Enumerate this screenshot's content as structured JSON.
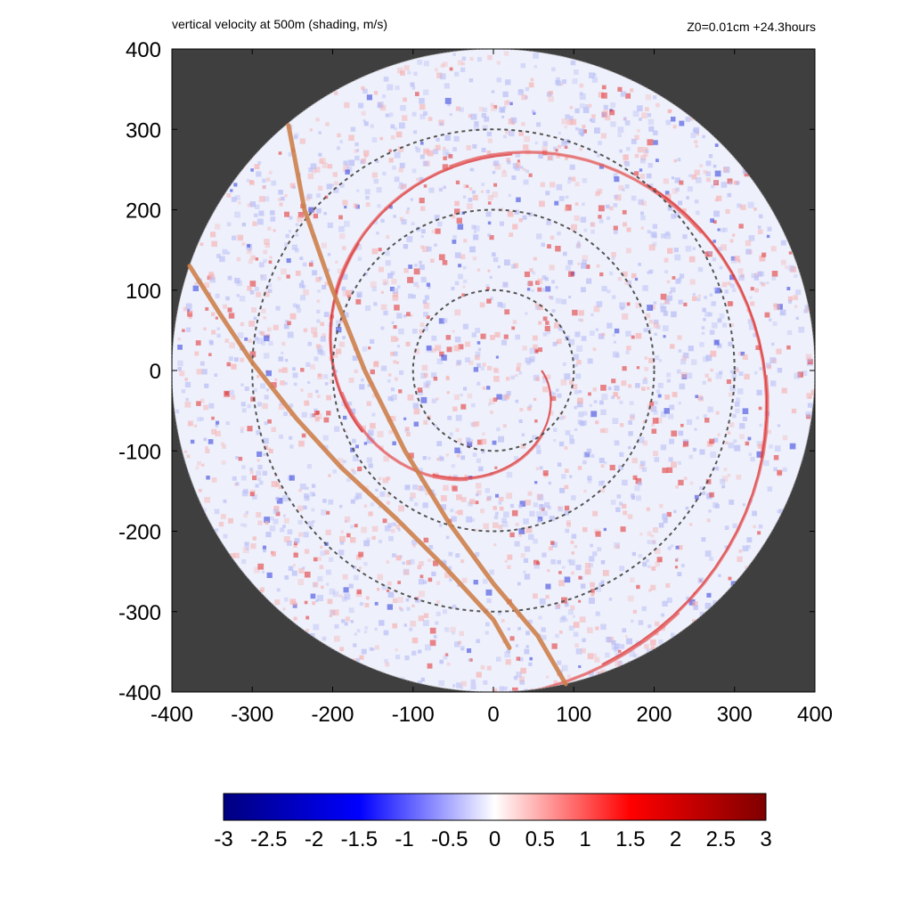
{
  "chart_data": {
    "type": "heatmap",
    "title": "vertical velocity at 500m (shading, m/s)",
    "subtitle": "Z0=0.01cm  +24.3hours",
    "xlabel": "",
    "ylabel": "",
    "xlim": [
      -400,
      400
    ],
    "ylim": [
      -400,
      400
    ],
    "x_ticks": [
      "-400",
      "-300",
      "-200",
      "-100",
      "0",
      "100",
      "200",
      "300",
      "400"
    ],
    "y_ticks": [
      "400",
      "300",
      "200",
      "100",
      "0",
      "-100",
      "-200",
      "-300",
      "-400"
    ],
    "x_tick_values": [
      -400,
      -300,
      -200,
      -100,
      0,
      100,
      200,
      300,
      400
    ],
    "y_tick_values": [
      400,
      300,
      200,
      100,
      0,
      -100,
      -200,
      -300,
      -400
    ],
    "domain_radius": 400,
    "reference_circle_radii": [
      100,
      200,
      300
    ],
    "tracks": [
      {
        "points": [
          [
            -255,
            305
          ],
          [
            -235,
            200
          ],
          [
            -200,
            100
          ],
          [
            -160,
            0
          ],
          [
            -110,
            -100
          ],
          [
            -55,
            -190
          ],
          [
            0,
            -265
          ],
          [
            55,
            -330
          ],
          [
            90,
            -390
          ]
        ]
      },
      {
        "points": [
          [
            -378,
            130
          ],
          [
            -340,
            70
          ],
          [
            -300,
            10
          ],
          [
            -245,
            -60
          ],
          [
            -190,
            -120
          ],
          [
            -120,
            -185
          ],
          [
            -60,
            -245
          ],
          [
            0,
            -310
          ],
          [
            20,
            -345
          ]
        ]
      }
    ],
    "colorbar": {
      "ticks": [
        "-3",
        "-2.5",
        "-2",
        "-1.5",
        "-1",
        "-0.5",
        "0",
        "0.5",
        "1",
        "1.5",
        "2",
        "2.5",
        "3"
      ],
      "tick_values": [
        -3,
        -2.5,
        -2,
        -1.5,
        -1,
        -0.5,
        0,
        0.5,
        1,
        1.5,
        2,
        2.5,
        3
      ],
      "range": [
        -3,
        3
      ],
      "colors": [
        "#00007f",
        "#0000ff",
        "#ffffff",
        "#ff0000",
        "#7f0000"
      ]
    },
    "grid": false,
    "legend": "none",
    "colors": {
      "background_outside_domain": "#3f3f3f",
      "domain_fill": "#eef0fb",
      "reference_circles": "#555555",
      "tracks": "#cd7f4a"
    }
  }
}
